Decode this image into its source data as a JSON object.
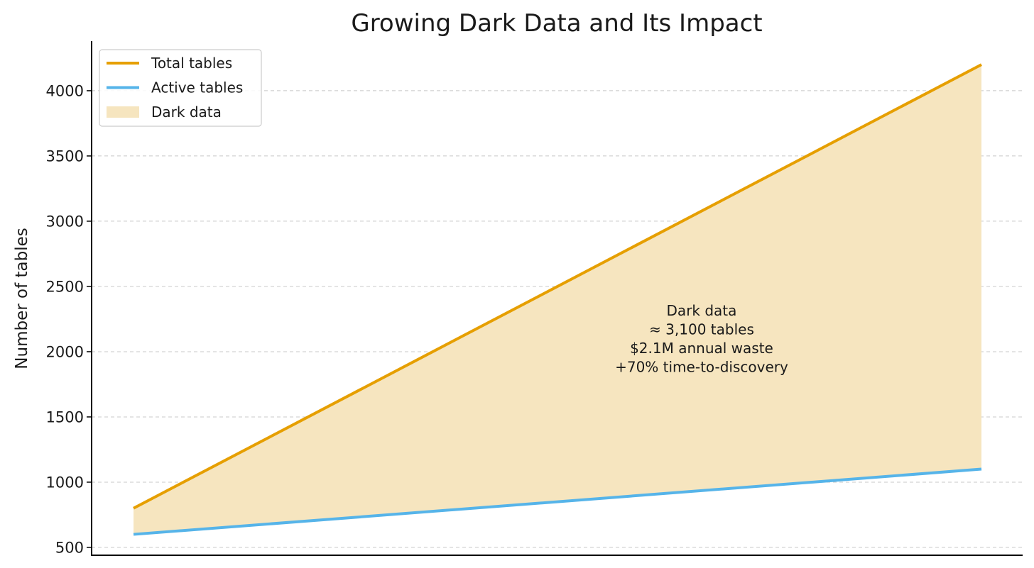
{
  "chart_data": {
    "type": "area",
    "title": "Growing Dark Data and Its Impact",
    "xlabel": "",
    "ylabel": "Number of tables",
    "ylim": [
      440,
      4380
    ],
    "yticks": [
      500,
      1000,
      1500,
      2000,
      2500,
      3000,
      3500,
      4000
    ],
    "grid": "horizontal dashed",
    "legend_position": "top-left",
    "x": [
      0,
      1
    ],
    "series": [
      {
        "name": "Total tables",
        "type": "line",
        "color": "#E69F00",
        "values": [
          800,
          4200
        ]
      },
      {
        "name": "Active tables",
        "type": "line",
        "color": "#56B4E9",
        "values": [
          600,
          1100
        ]
      }
    ],
    "fill": {
      "name": "Dark data",
      "color": "#F6E5BF",
      "between": [
        "Active tables",
        "Total tables"
      ]
    },
    "annotation": {
      "lines": [
        "Dark data",
        "≈ 3,100 tables",
        "$2.1M annual waste",
        "+70% time-to-discovery"
      ],
      "x": 0.67,
      "y": 2100
    }
  }
}
